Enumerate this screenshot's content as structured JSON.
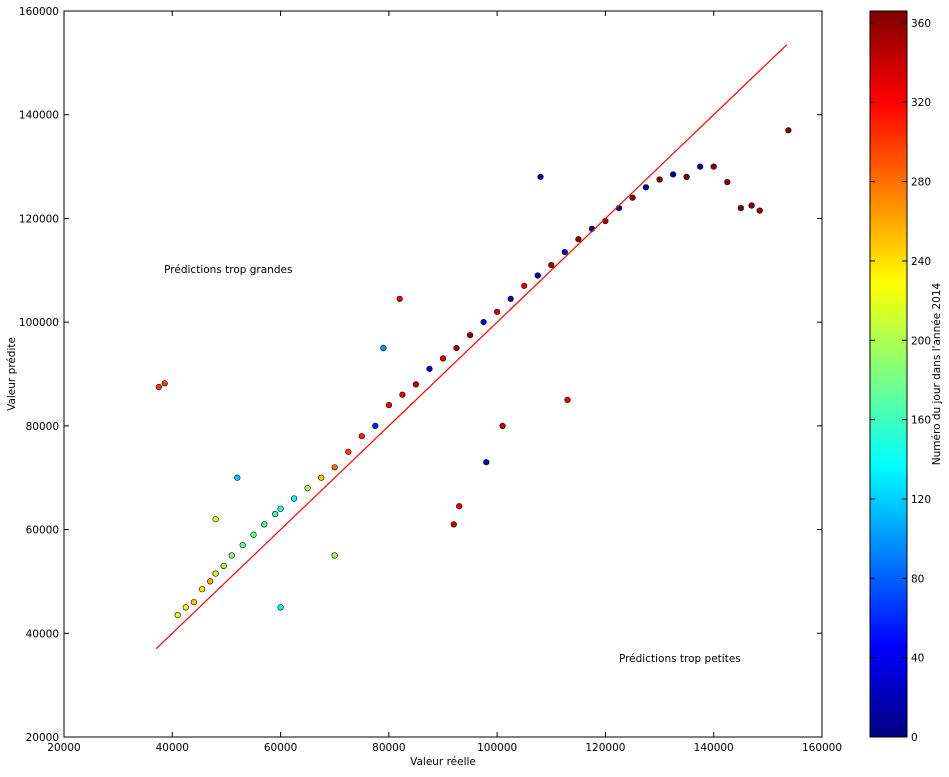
{
  "chart_data": {
    "type": "scatter",
    "title": "",
    "xlabel": "Valeur réelle",
    "ylabel": "Valeur prédite",
    "xlim": [
      20000,
      160000
    ],
    "ylim": [
      20000,
      160000
    ],
    "xticks": [
      20000,
      40000,
      60000,
      80000,
      100000,
      120000,
      140000,
      160000
    ],
    "yticks": [
      20000,
      40000,
      60000,
      80000,
      100000,
      120000,
      140000,
      160000
    ],
    "grid": false,
    "annotations": [
      {
        "text": "Prédictions trop grandes",
        "x": 38500,
        "y": 109500
      },
      {
        "text": "Prédictions trop petites",
        "x": 122500,
        "y": 34500
      }
    ],
    "reference_line": {
      "color": "#ff0000",
      "x": [
        37000,
        153500
      ],
      "y": [
        37000,
        153500
      ]
    },
    "colorbar": {
      "label": "Numéro du jour dans l'année 2014",
      "range": [
        0,
        366
      ],
      "ticks": [
        0,
        40,
        80,
        120,
        160,
        200,
        240,
        280,
        320,
        360
      ],
      "colormap": "jet",
      "colormap_stops": [
        "#00007f",
        "#0000ff",
        "#007fff",
        "#00ffff",
        "#7fff7f",
        "#ffff00",
        "#ff7f00",
        "#ff0000",
        "#7f0000"
      ]
    },
    "series": [
      {
        "x": [
          37500,
          38600,
          41000,
          42500,
          44000,
          45500,
          47000,
          48000,
          49500,
          51000,
          53000,
          55000,
          57000,
          59000,
          60000,
          62500,
          65000,
          67500,
          70000,
          72500,
          75000,
          77500,
          80000,
          82500,
          85000,
          87500,
          90000,
          92500,
          95000,
          97500,
          100000,
          102500,
          105000,
          107500,
          110000,
          112500,
          115000,
          117500,
          120000,
          122500,
          125000,
          127500,
          130000,
          132500,
          135000,
          137500,
          140000,
          142500,
          145000,
          147000,
          148500,
          153800,
          52000,
          48000,
          60000,
          70000,
          92000,
          93000,
          108000,
          113000,
          79000,
          82000,
          98000,
          101000
        ],
        "y": [
          87500,
          88200,
          43500,
          45000,
          46000,
          48500,
          50000,
          51500,
          53000,
          55000,
          57000,
          59000,
          61000,
          63000,
          64000,
          66000,
          68000,
          70000,
          72000,
          75000,
          78000,
          80000,
          84000,
          86000,
          88000,
          91000,
          93000,
          95000,
          97500,
          100000,
          102000,
          104500,
          107000,
          109000,
          111000,
          113500,
          116000,
          118000,
          119500,
          122000,
          124000,
          126000,
          127500,
          128500,
          128000,
          130000,
          130000,
          127000,
          122000,
          122500,
          121500,
          137000,
          70000,
          62000,
          45000,
          55000,
          61000,
          64500,
          128000,
          85000,
          95000,
          104500,
          73000,
          80000
        ],
        "day": [
          300,
          300,
          220,
          230,
          250,
          240,
          260,
          210,
          200,
          190,
          180,
          175,
          170,
          160,
          150,
          140,
          200,
          250,
          280,
          300,
          310,
          60,
          320,
          330,
          340,
          30,
          330,
          350,
          360,
          20,
          340,
          10,
          330,
          20,
          350,
          20,
          360,
          10,
          355,
          20,
          365,
          15,
          360,
          10,
          365,
          5,
          360,
          365,
          365,
          365,
          360,
          365,
          120,
          210,
          140,
          200,
          340,
          330,
          10,
          330,
          100,
          330,
          20,
          340
        ]
      }
    ]
  }
}
